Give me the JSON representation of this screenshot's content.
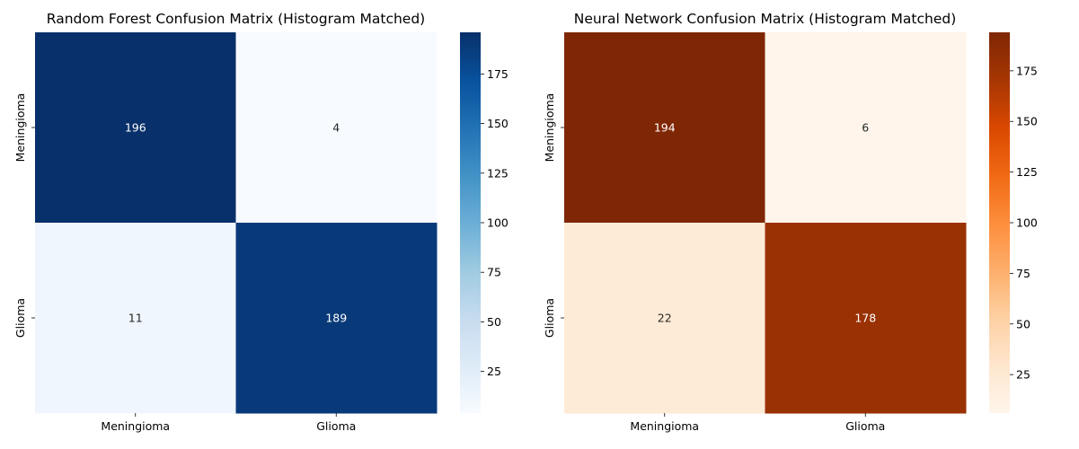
{
  "chart_data": [
    {
      "type": "heatmap",
      "title": "Random Forest Confusion Matrix (Histogram Matched)",
      "row_labels": [
        "Meningioma",
        "Glioma"
      ],
      "col_labels": [
        "Meningioma",
        "Glioma"
      ],
      "values": [
        [
          196,
          4
        ],
        [
          11,
          189
        ]
      ],
      "colormap": "Blues",
      "color_low": "#f7fbff",
      "color_high": "#08306b",
      "vmin": 4,
      "vmax": 196,
      "colorbar_ticks": [
        25,
        50,
        75,
        100,
        125,
        150,
        175
      ],
      "xlabel": "",
      "ylabel": ""
    },
    {
      "type": "heatmap",
      "title": "Neural Network Confusion Matrix (Histogram Matched)",
      "row_labels": [
        "Meningioma",
        "Glioma"
      ],
      "col_labels": [
        "Meningioma",
        "Glioma"
      ],
      "values": [
        [
          194,
          6
        ],
        [
          22,
          178
        ]
      ],
      "colormap": "Oranges",
      "color_low": "#fff5eb",
      "color_high": "#7f2704",
      "vmin": 6,
      "vmax": 194,
      "colorbar_ticks": [
        25,
        50,
        75,
        100,
        125,
        150,
        175
      ],
      "xlabel": "",
      "ylabel": ""
    }
  ]
}
